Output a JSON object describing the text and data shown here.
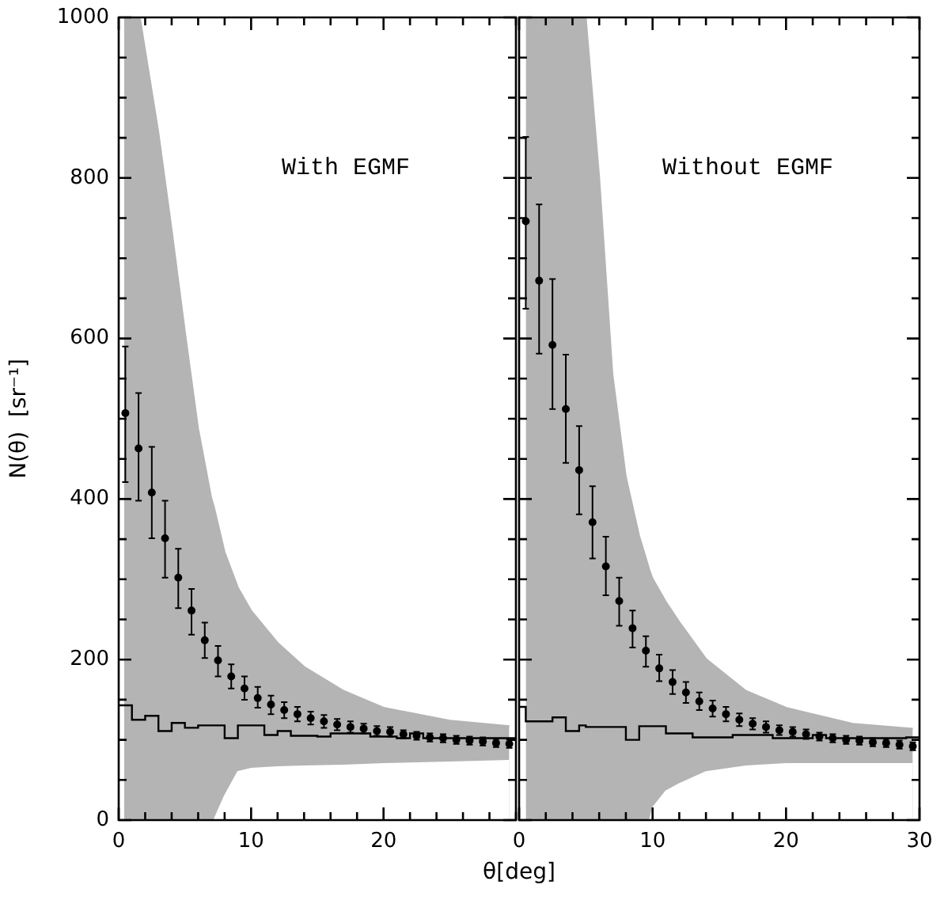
{
  "chart_data": [
    {
      "type": "scatter",
      "annotations": [
        "With EGMF"
      ],
      "xlabel": "θ[deg]",
      "ylabel": "N(θ)  [sr⁻¹]",
      "xlim": [
        0,
        30
      ],
      "ylim": [
        0,
        1000
      ],
      "xticks": [
        0,
        {
          "value": 2,
          "label": null
        },
        {
          "value": 4,
          "label": null
        },
        {
          "value": 6,
          "label": null
        },
        {
          "value": 8,
          "label": null
        },
        10,
        {
          "value": 12,
          "label": null
        },
        {
          "value": 14,
          "label": null
        },
        {
          "value": 16,
          "label": null
        },
        {
          "value": 18,
          "label": null
        },
        20,
        {
          "value": 22,
          "label": null
        },
        {
          "value": 24,
          "label": null
        },
        {
          "value": 26,
          "label": null
        },
        {
          "value": 28,
          "label": null
        },
        {
          "value": 30,
          "label": null
        }
      ],
      "yticks": [
        0,
        {
          "value": 50,
          "label": null
        },
        {
          "value": 100,
          "label": null
        },
        {
          "value": 150,
          "label": null
        },
        200,
        {
          "value": 250,
          "label": null
        },
        {
          "value": 300,
          "label": null
        },
        {
          "value": 350,
          "label": null
        },
        400,
        {
          "value": 450,
          "label": null
        },
        {
          "value": 500,
          "label": null
        },
        {
          "value": 550,
          "label": null
        },
        600,
        {
          "value": 650,
          "label": null
        },
        {
          "value": 700,
          "label": null
        },
        {
          "value": 750,
          "label": null
        },
        800,
        {
          "value": 850,
          "label": null
        },
        {
          "value": 900,
          "label": null
        },
        {
          "value": 950,
          "label": null
        },
        1000
      ],
      "grid": false,
      "series": [
        {
          "type": "area",
          "color": "#b4b4b4",
          "x": [
            0.4,
            1.6,
            3,
            4,
            5,
            6,
            7,
            7.2,
            8,
            9,
            10,
            12,
            14,
            17,
            20,
            25,
            29.5
          ],
          "values": [
            1000,
            1000,
            857,
            736,
            609,
            488,
            401,
            390,
            334,
            290,
            261,
            221,
            191,
            161,
            140,
            124,
            117
          ]
        },
        {
          "type": "area",
          "color": "#ffffff",
          "x": [
            7.2,
            8,
            9,
            10,
            12,
            14,
            17,
            20,
            25,
            29.5
          ],
          "values": [
            0,
            30,
            60,
            64,
            66,
            67,
            68,
            70,
            72,
            74
          ]
        },
        {
          "type": "step",
          "color": "#000000",
          "x": [
            0,
            1,
            2,
            3,
            4,
            5,
            6,
            8,
            9,
            11,
            12,
            13,
            15,
            16,
            19,
            21,
            22,
            23,
            30
          ],
          "values": [
            143,
            125,
            130,
            111,
            121,
            115,
            118,
            102,
            118,
            106,
            111,
            105,
            104,
            108,
            104,
            102,
            108,
            102,
            102
          ]
        },
        {
          "type": "scatter",
          "color": "#000000",
          "marker": "circle",
          "x": [
            0.5,
            1.5,
            2.5,
            3.5,
            4.5,
            5.5,
            6.5,
            7.5,
            8.5,
            9.5,
            10.5,
            11.5,
            12.5,
            13.5,
            14.5,
            15.5,
            16.5,
            17.5,
            18.5,
            19.5,
            20.5,
            21.5,
            22.5,
            23.5,
            24.5,
            25.5,
            26.5,
            27.5,
            28.5,
            29.5
          ],
          "values": [
            507,
            463,
            408,
            351,
            302,
            261,
            224,
            199,
            179,
            164,
            152,
            144,
            137,
            132,
            127,
            123,
            119,
            116,
            114,
            111,
            110,
            107,
            105,
            103,
            102,
            100,
            99,
            98,
            96,
            95
          ],
          "errors": [
            [
              421,
              590
            ],
            [
              398,
              532
            ],
            [
              351,
              465
            ],
            [
              302,
              398
            ],
            [
              264,
              338
            ],
            [
              231,
              288
            ],
            [
              202,
              246
            ],
            [
              179,
              217
            ],
            [
              164,
              194
            ],
            [
              150,
              179
            ],
            [
              140,
              166
            ],
            [
              132,
              155
            ],
            10,
            9,
            8,
            8,
            7,
            7,
            6,
            6,
            6,
            5,
            5,
            5,
            5,
            5,
            5,
            5,
            5,
            5
          ]
        }
      ]
    },
    {
      "type": "scatter",
      "annotations": [
        "Without EGMF"
      ],
      "xlim": [
        0,
        30
      ],
      "ylim": [
        0,
        1000
      ],
      "tick_labels": "x",
      "xticks": [
        0,
        {
          "value": 2,
          "label": null
        },
        {
          "value": 4,
          "label": null
        },
        {
          "value": 6,
          "label": null
        },
        {
          "value": 8,
          "label": null
        },
        10,
        {
          "value": 12,
          "label": null
        },
        {
          "value": 14,
          "label": null
        },
        {
          "value": 16,
          "label": null
        },
        {
          "value": 18,
          "label": null
        },
        20,
        {
          "value": 22,
          "label": null
        },
        {
          "value": 24,
          "label": null
        },
        {
          "value": 26,
          "label": null
        },
        {
          "value": 28,
          "label": null
        },
        30
      ],
      "yticks": [
        0,
        {
          "value": 50,
          "label": null
        },
        {
          "value": 100,
          "label": null
        },
        {
          "value": 150,
          "label": null
        },
        200,
        {
          "value": 250,
          "label": null
        },
        {
          "value": 300,
          "label": null
        },
        {
          "value": 350,
          "label": null
        },
        400,
        {
          "value": 450,
          "label": null
        },
        {
          "value": 500,
          "label": null
        },
        {
          "value": 550,
          "label": null
        },
        600,
        {
          "value": 650,
          "label": null
        },
        {
          "value": 700,
          "label": null
        },
        {
          "value": 750,
          "label": null
        },
        800,
        {
          "value": 850,
          "label": null
        },
        {
          "value": 900,
          "label": null
        },
        {
          "value": 950,
          "label": null
        },
        1000
      ],
      "grid": false,
      "series": [
        {
          "type": "area",
          "color": "#b4b4b4",
          "x": [
            0.5,
            5,
            6,
            7,
            8,
            9,
            9.8,
            10,
            11,
            12,
            14,
            17,
            20,
            25,
            29.5
          ],
          "values": [
            1000,
            1000,
            802,
            555,
            428,
            354,
            310,
            301,
            272,
            247,
            201,
            161,
            140,
            120,
            114
          ]
        },
        {
          "type": "area",
          "color": "#ffffff",
          "x": [
            9.8,
            10,
            11,
            12,
            14,
            17,
            20,
            25,
            29.5
          ],
          "values": [
            0,
            15,
            36,
            45,
            60,
            67,
            70,
            70,
            70
          ]
        },
        {
          "type": "step",
          "color": "#000000",
          "x": [
            0,
            0.5,
            2.5,
            3.5,
            4.5,
            5,
            8,
            9,
            11,
            13,
            16,
            19,
            22,
            23,
            29,
            30
          ],
          "values": [
            141,
            123,
            128,
            111,
            118,
            116,
            100,
            117,
            108,
            103,
            106,
            102,
            106,
            102,
            103,
            103
          ]
        },
        {
          "type": "scatter",
          "color": "#000000",
          "marker": "circle",
          "x": [
            0.5,
            1.5,
            2.5,
            3.5,
            4.5,
            5.5,
            6.5,
            7.5,
            8.5,
            9.5,
            10.5,
            11.5,
            12.5,
            13.5,
            14.5,
            15.5,
            16.5,
            17.5,
            18.5,
            19.5,
            20.5,
            21.5,
            22.5,
            23.5,
            24.5,
            25.5,
            26.5,
            27.5,
            28.5,
            29.5
          ],
          "values": [
            746,
            672,
            592,
            512,
            436,
            371,
            316,
            273,
            239,
            211,
            189,
            172,
            159,
            148,
            139,
            132,
            125,
            120,
            116,
            112,
            110,
            107,
            104,
            102,
            100,
            99,
            97,
            96,
            94,
            92
          ],
          "errors": [
            [
              637,
              851
            ],
            [
              581,
              767
            ],
            [
              512,
              674
            ],
            [
              445,
              580
            ],
            [
              381,
              491
            ],
            [
              326,
              416
            ],
            [
              280,
              353
            ],
            [
              242,
              302
            ],
            [
              215,
              261
            ],
            [
              191,
              229
            ],
            [
              173,
              206
            ],
            [
              157,
              187
            ],
            13,
            11,
            10,
            9,
            8,
            7,
            7,
            6,
            6,
            6,
            5,
            5,
            5,
            5,
            5,
            5,
            5,
            5
          ]
        }
      ]
    }
  ]
}
